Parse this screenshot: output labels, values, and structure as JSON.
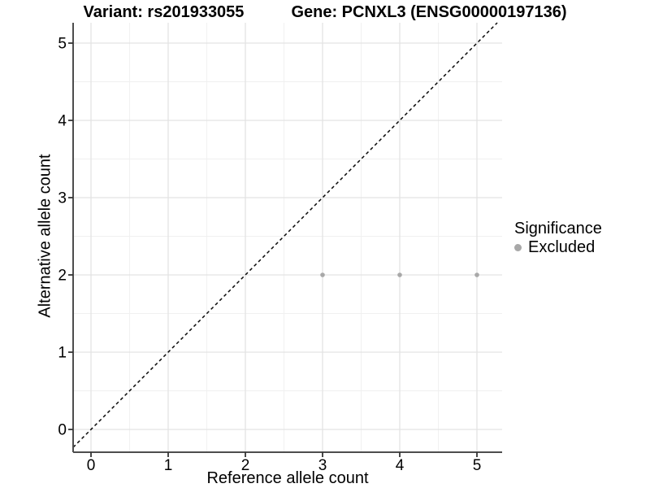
{
  "figure": {
    "title_left": "Variant: rs201933055",
    "title_right": "Gene: PCNXL3 (ENSG00000197136)"
  },
  "legend": {
    "title": "Significance",
    "items": [
      {
        "label": "Excluded",
        "marker": "circle-icon",
        "color": "#a8a8a8"
      }
    ]
  },
  "chart_data": {
    "type": "scatter",
    "title": "Variant: rs201933055   Gene: PCNXL3 (ENSG00000197136)",
    "xlabel": "Reference allele count",
    "ylabel": "Alternative allele count",
    "x_ticks": [
      0,
      1,
      2,
      3,
      4,
      5
    ],
    "y_ticks": [
      0,
      1,
      2,
      3,
      4,
      5
    ],
    "x_minor_ticks": [
      0.5,
      1.5,
      2.5,
      3.5,
      4.5
    ],
    "y_minor_ticks": [
      0.5,
      1.5,
      2.5,
      3.5,
      4.5
    ],
    "xlim": [
      -0.2316,
      5.3263
    ],
    "ylim": [
      -0.2947,
      5.2632
    ],
    "grid": "major-and-minor",
    "legend_position": "right",
    "series": [
      {
        "name": "Excluded",
        "color": "#a8a8a8",
        "points": [
          {
            "x": 3,
            "y": 2
          },
          {
            "x": 4,
            "y": 2
          },
          {
            "x": 5,
            "y": 2
          }
        ]
      }
    ],
    "reference_line": {
      "type": "identity",
      "style": "dashed",
      "color": "#0a0a0a"
    }
  },
  "style": {
    "grid_major_color": "#e3e3e3",
    "grid_minor_color": "#f0f0f0",
    "axis_line_color": "#4d4d4d",
    "tick_color": "#333333",
    "point_radius": 2.8,
    "background": "#ffffff"
  }
}
